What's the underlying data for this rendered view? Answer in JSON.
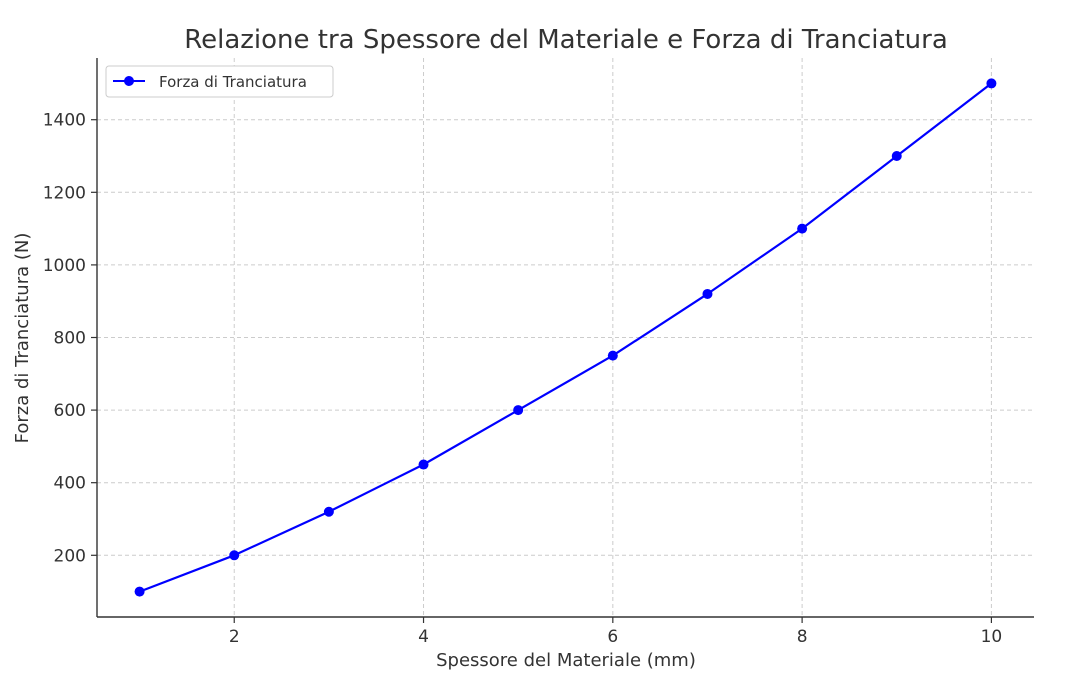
{
  "chart_data": {
    "type": "line",
    "title": "Relazione tra Spessore del Materiale e Forza di Tranciatura",
    "xlabel": "Spessore del Materiale (mm)",
    "ylabel": "Forza di Tranciatura (N)",
    "x": [
      1,
      2,
      3,
      4,
      5,
      6,
      7,
      8,
      9,
      10
    ],
    "series": [
      {
        "name": "Forza di Tranciatura",
        "values": [
          100,
          200,
          320,
          450,
          600,
          750,
          920,
          1100,
          1300,
          1500
        ],
        "color": "#0000ff",
        "marker": "circle"
      }
    ],
    "xlim": [
      0.55,
      10.45
    ],
    "ylim": [
      30,
      1570
    ],
    "xticks": [
      "2",
      "4",
      "6",
      "8",
      "10"
    ],
    "xtick_values": [
      2,
      4,
      6,
      8,
      10
    ],
    "yticks": [
      "200",
      "400",
      "600",
      "800",
      "1000",
      "1200",
      "1400"
    ],
    "ytick_values": [
      200,
      400,
      600,
      800,
      1000,
      1200,
      1400
    ],
    "grid": true,
    "legend_position": "top-left"
  }
}
